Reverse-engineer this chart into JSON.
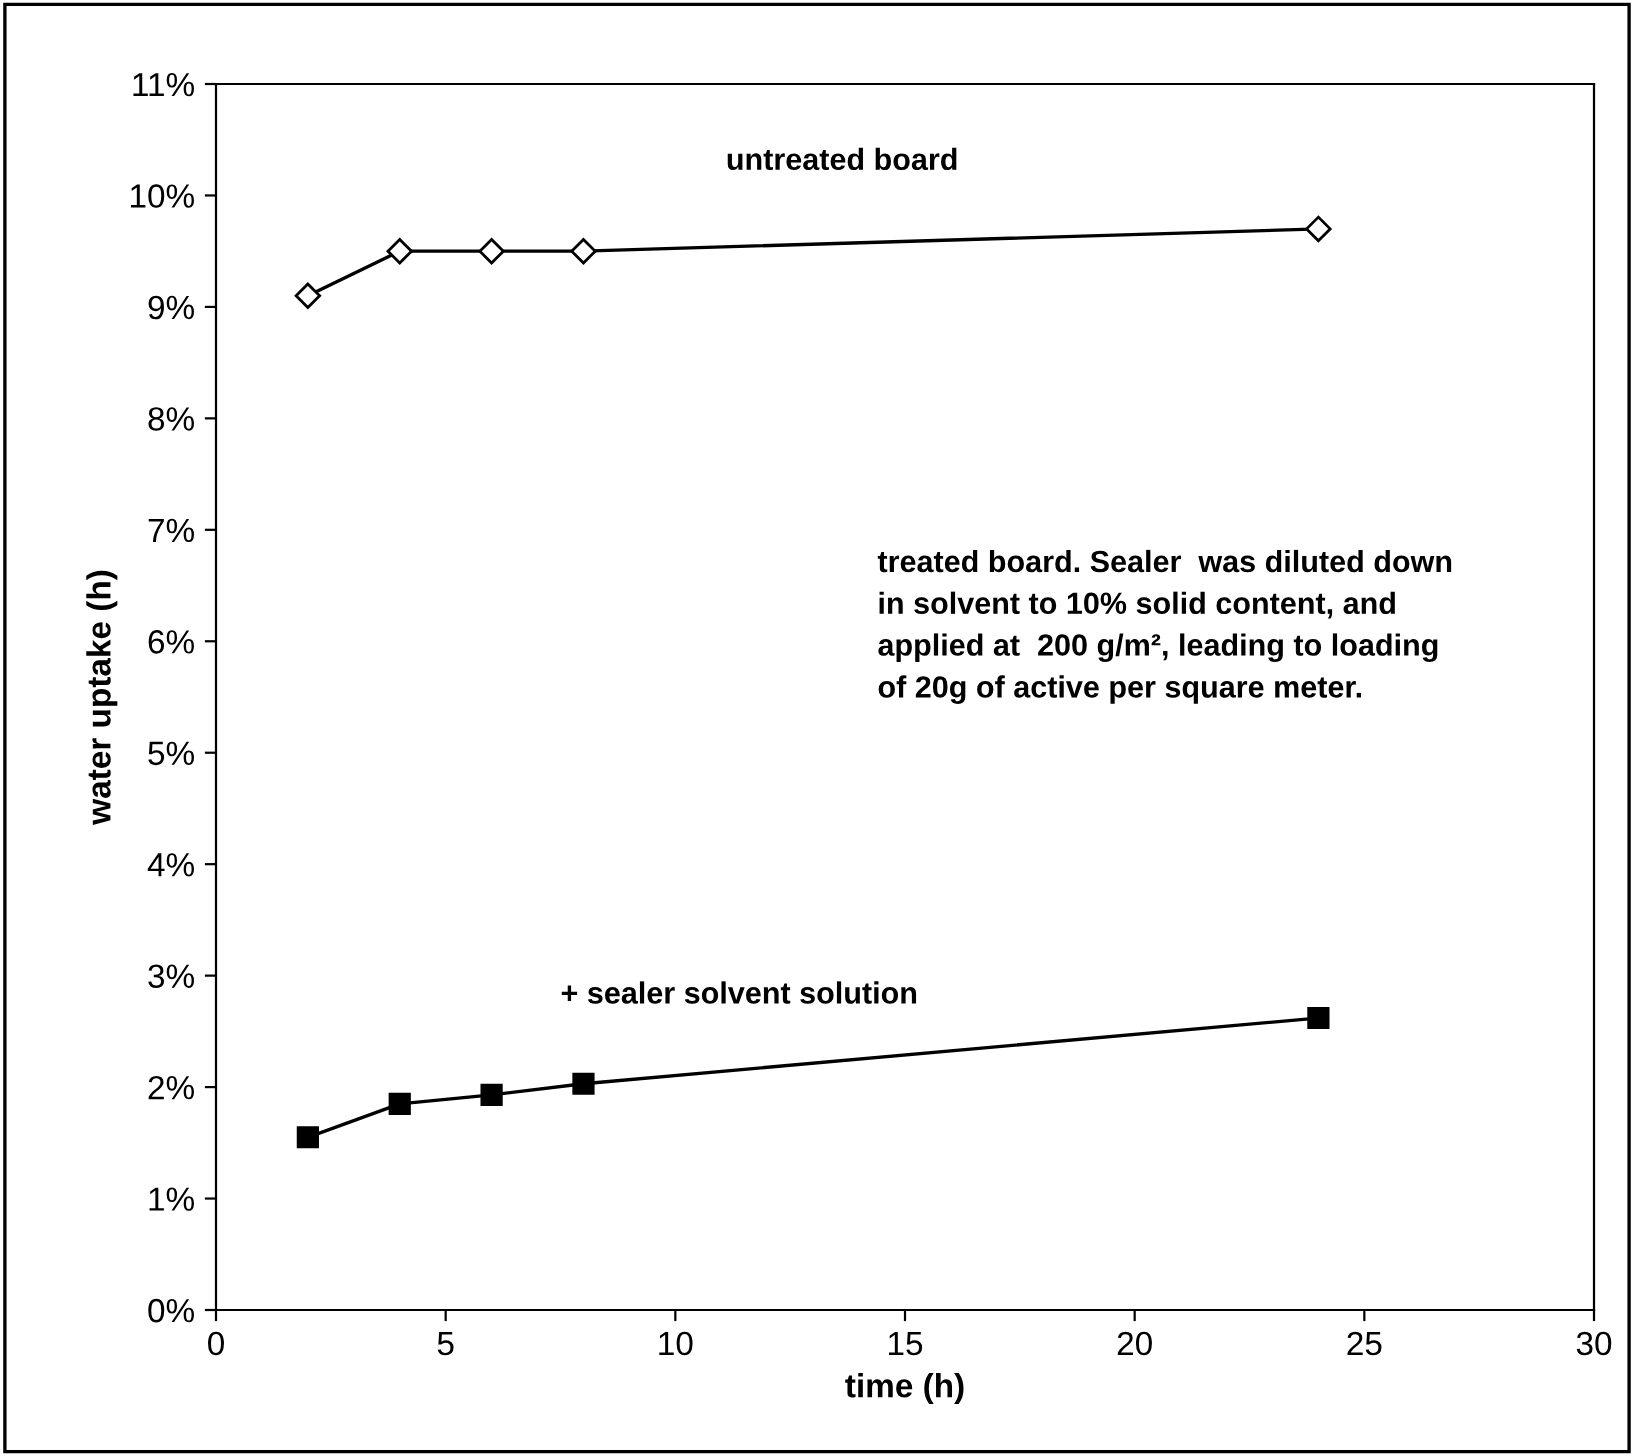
{
  "chart_data": {
    "type": "line",
    "xlabel": "time (h)",
    "ylabel": "water uptake (h)",
    "x": [
      2,
      4,
      6,
      8,
      24
    ],
    "series": [
      {
        "name": "untreated board",
        "color": "#000000",
        "marker": "diamond",
        "values": [
          9.1,
          9.5,
          9.5,
          9.5,
          9.7
        ]
      },
      {
        "name": "+ sealer solvent solution",
        "color": "#000000",
        "marker": "square",
        "values": [
          1.55,
          1.85,
          1.93,
          2.03,
          2.62
        ]
      }
    ],
    "annotations": [
      "treated board. Sealer  was diluted down in solvent to 10% solid content, and applied at  200 g/m², leading to loading of 20g of active per square meter."
    ],
    "xlim": [
      0,
      30
    ],
    "xticks": [
      0,
      5,
      10,
      15,
      20,
      25,
      30
    ],
    "ylim": [
      0,
      11
    ],
    "yticks": [
      {
        "value": 0,
        "label": "0%"
      },
      {
        "value": 1,
        "label": "1%"
      },
      {
        "value": 2,
        "label": "2%"
      },
      {
        "value": 3,
        "label": "3%"
      },
      {
        "value": 4,
        "label": "4%"
      },
      {
        "value": 5,
        "label": "5%"
      },
      {
        "value": 6,
        "label": "6%"
      },
      {
        "value": 7,
        "label": "7%"
      },
      {
        "value": 8,
        "label": "8%"
      },
      {
        "value": 9,
        "label": "9%"
      },
      {
        "value": 10,
        "label": "10%"
      },
      {
        "value": 11,
        "label": "11%"
      }
    ],
    "grid": false,
    "legend": false,
    "line_style": "solid"
  }
}
